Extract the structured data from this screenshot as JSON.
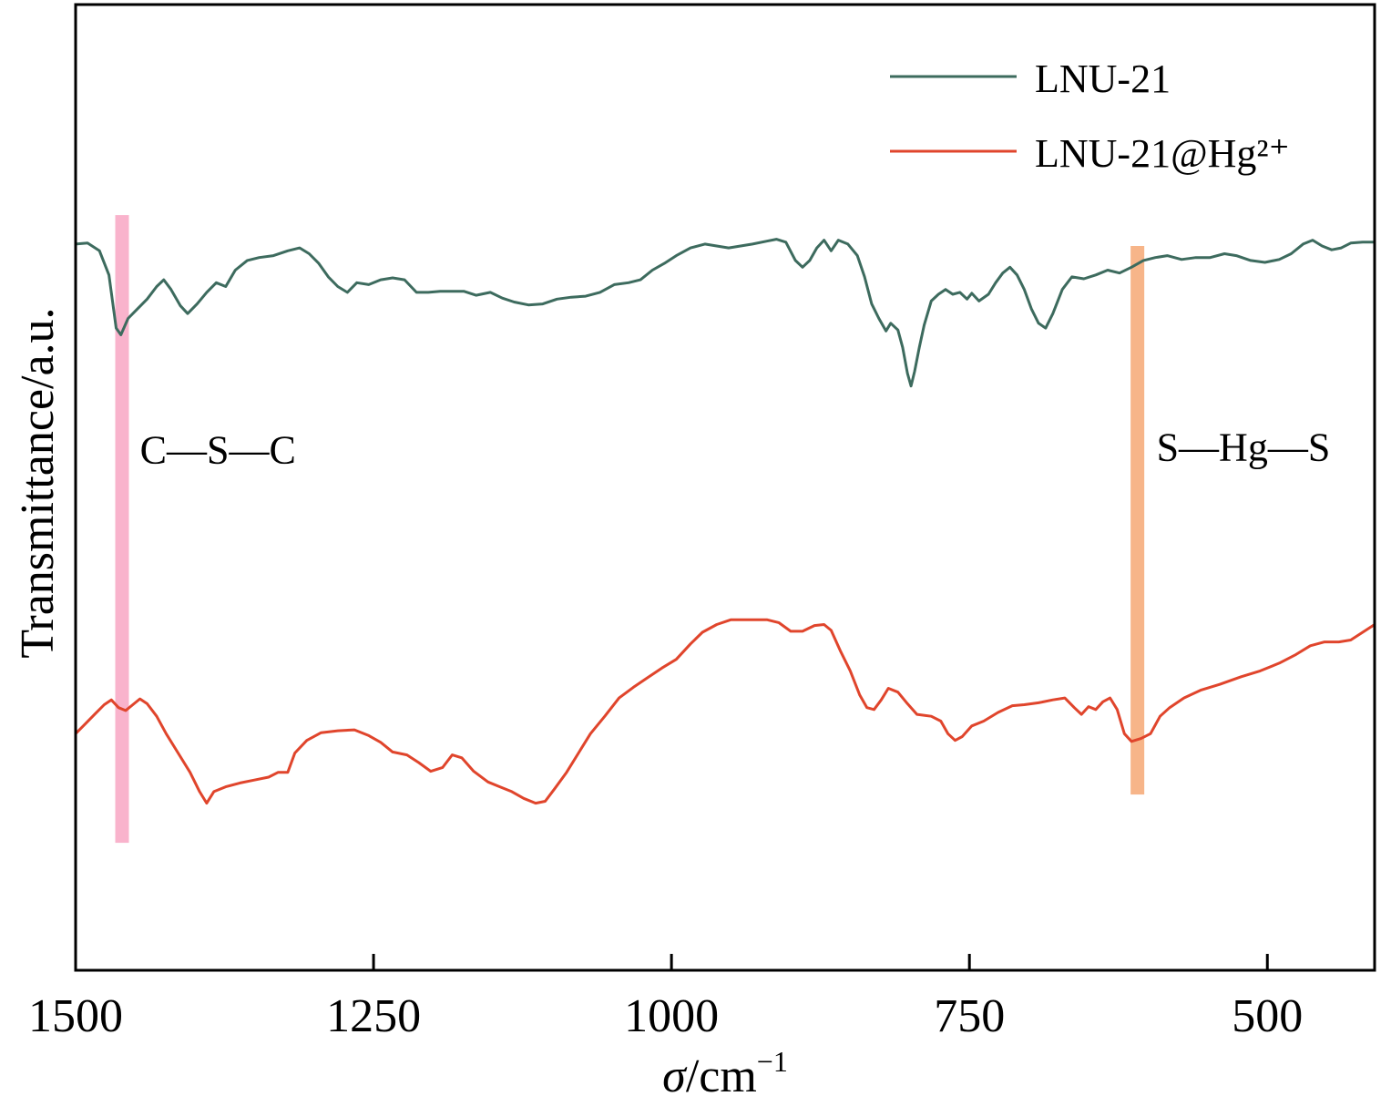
{
  "chart_data": {
    "type": "line",
    "xlabel": {
      "symbol": "σ",
      "unit": "/cm",
      "exp": "−1"
    },
    "ylabel": "Transmittance/a.u.",
    "xlim": [
      1500,
      410
    ],
    "ylim": [
      0,
      100
    ],
    "x_reversed": true,
    "xticks": [
      1500,
      1250,
      1000,
      750,
      500
    ],
    "yticks_shown": false,
    "grid": false,
    "legend_position": "top-right",
    "series": [
      {
        "name": "LNU-21",
        "color": "#3d6b5e",
        "points": [
          [
            1500,
            75.2
          ],
          [
            1490,
            75.3
          ],
          [
            1480,
            74.5
          ],
          [
            1472,
            72.0
          ],
          [
            1466,
            66.5
          ],
          [
            1462,
            65.8
          ],
          [
            1456,
            67.5
          ],
          [
            1448,
            68.5
          ],
          [
            1440,
            69.5
          ],
          [
            1432,
            70.8
          ],
          [
            1426,
            71.5
          ],
          [
            1420,
            70.5
          ],
          [
            1412,
            68.8
          ],
          [
            1406,
            68.0
          ],
          [
            1398,
            69.0
          ],
          [
            1390,
            70.2
          ],
          [
            1382,
            71.2
          ],
          [
            1374,
            70.8
          ],
          [
            1366,
            72.5
          ],
          [
            1356,
            73.5
          ],
          [
            1346,
            73.8
          ],
          [
            1334,
            74.0
          ],
          [
            1322,
            74.5
          ],
          [
            1312,
            74.8
          ],
          [
            1304,
            74.2
          ],
          [
            1296,
            73.2
          ],
          [
            1288,
            71.8
          ],
          [
            1280,
            70.8
          ],
          [
            1272,
            70.2
          ],
          [
            1264,
            71.2
          ],
          [
            1254,
            71.0
          ],
          [
            1244,
            71.5
          ],
          [
            1234,
            71.7
          ],
          [
            1224,
            71.5
          ],
          [
            1214,
            70.2
          ],
          [
            1204,
            70.2
          ],
          [
            1194,
            70.3
          ],
          [
            1184,
            70.3
          ],
          [
            1174,
            70.3
          ],
          [
            1164,
            69.9
          ],
          [
            1152,
            70.2
          ],
          [
            1142,
            69.6
          ],
          [
            1132,
            69.2
          ],
          [
            1120,
            68.9
          ],
          [
            1108,
            69.0
          ],
          [
            1096,
            69.5
          ],
          [
            1084,
            69.7
          ],
          [
            1072,
            69.8
          ],
          [
            1060,
            70.2
          ],
          [
            1048,
            71.0
          ],
          [
            1036,
            71.2
          ],
          [
            1026,
            71.5
          ],
          [
            1016,
            72.5
          ],
          [
            1006,
            73.2
          ],
          [
            996,
            74.0
          ],
          [
            984,
            74.8
          ],
          [
            972,
            75.2
          ],
          [
            962,
            75.0
          ],
          [
            952,
            74.8
          ],
          [
            942,
            75.0
          ],
          [
            932,
            75.2
          ],
          [
            920,
            75.5
          ],
          [
            912,
            75.7
          ],
          [
            904,
            75.4
          ],
          [
            896,
            73.5
          ],
          [
            890,
            72.8
          ],
          [
            884,
            73.5
          ],
          [
            878,
            74.8
          ],
          [
            872,
            75.6
          ],
          [
            866,
            74.5
          ],
          [
            860,
            75.6
          ],
          [
            852,
            75.2
          ],
          [
            844,
            74.0
          ],
          [
            838,
            71.8
          ],
          [
            832,
            69.0
          ],
          [
            826,
            67.5
          ],
          [
            820,
            66.2
          ],
          [
            816,
            67.0
          ],
          [
            810,
            66.3
          ],
          [
            806,
            64.5
          ],
          [
            802,
            61.8
          ],
          [
            799,
            60.5
          ],
          [
            796,
            62.0
          ],
          [
            792,
            64.5
          ],
          [
            788,
            66.8
          ],
          [
            782,
            69.3
          ],
          [
            776,
            70.0
          ],
          [
            770,
            70.5
          ],
          [
            764,
            70.0
          ],
          [
            758,
            70.2
          ],
          [
            752,
            69.5
          ],
          [
            748,
            70.1
          ],
          [
            742,
            69.3
          ],
          [
            734,
            70.0
          ],
          [
            728,
            71.2
          ],
          [
            722,
            72.2
          ],
          [
            716,
            72.8
          ],
          [
            710,
            72.0
          ],
          [
            704,
            70.5
          ],
          [
            698,
            68.5
          ],
          [
            692,
            67.0
          ],
          [
            686,
            66.5
          ],
          [
            680,
            68.0
          ],
          [
            672,
            70.5
          ],
          [
            664,
            71.8
          ],
          [
            654,
            71.6
          ],
          [
            644,
            72.0
          ],
          [
            634,
            72.5
          ],
          [
            624,
            72.2
          ],
          [
            614,
            72.8
          ],
          [
            604,
            73.5
          ],
          [
            594,
            73.8
          ],
          [
            584,
            74.0
          ],
          [
            572,
            73.6
          ],
          [
            560,
            73.8
          ],
          [
            548,
            73.8
          ],
          [
            536,
            74.2
          ],
          [
            526,
            74.0
          ],
          [
            514,
            73.5
          ],
          [
            502,
            73.3
          ],
          [
            490,
            73.6
          ],
          [
            480,
            74.2
          ],
          [
            470,
            75.2
          ],
          [
            462,
            75.6
          ],
          [
            454,
            75.0
          ],
          [
            446,
            74.6
          ],
          [
            438,
            74.8
          ],
          [
            430,
            75.3
          ],
          [
            420,
            75.4
          ],
          [
            410,
            75.4
          ]
        ]
      },
      {
        "name": "LNU-21@Hg²⁺",
        "color": "#e0452c",
        "points": [
          [
            1500,
            24.5
          ],
          [
            1492,
            25.5
          ],
          [
            1484,
            26.5
          ],
          [
            1476,
            27.5
          ],
          [
            1470,
            28.0
          ],
          [
            1464,
            27.2
          ],
          [
            1458,
            26.9
          ],
          [
            1452,
            27.5
          ],
          [
            1446,
            28.1
          ],
          [
            1440,
            27.6
          ],
          [
            1432,
            26.3
          ],
          [
            1424,
            24.5
          ],
          [
            1414,
            22.5
          ],
          [
            1404,
            20.5
          ],
          [
            1396,
            18.5
          ],
          [
            1390,
            17.3
          ],
          [
            1384,
            18.5
          ],
          [
            1374,
            19.0
          ],
          [
            1362,
            19.4
          ],
          [
            1350,
            19.7
          ],
          [
            1338,
            20.0
          ],
          [
            1330,
            20.5
          ],
          [
            1322,
            20.5
          ],
          [
            1316,
            22.5
          ],
          [
            1306,
            23.8
          ],
          [
            1294,
            24.6
          ],
          [
            1280,
            24.8
          ],
          [
            1266,
            24.9
          ],
          [
            1254,
            24.3
          ],
          [
            1244,
            23.6
          ],
          [
            1234,
            22.6
          ],
          [
            1222,
            22.3
          ],
          [
            1212,
            21.5
          ],
          [
            1202,
            20.6
          ],
          [
            1192,
            21.0
          ],
          [
            1184,
            22.3
          ],
          [
            1176,
            22.0
          ],
          [
            1166,
            20.6
          ],
          [
            1154,
            19.5
          ],
          [
            1144,
            19.0
          ],
          [
            1134,
            18.5
          ],
          [
            1124,
            17.8
          ],
          [
            1114,
            17.3
          ],
          [
            1106,
            17.5
          ],
          [
            1098,
            18.8
          ],
          [
            1088,
            20.5
          ],
          [
            1078,
            22.5
          ],
          [
            1068,
            24.5
          ],
          [
            1056,
            26.3
          ],
          [
            1044,
            28.2
          ],
          [
            1032,
            29.3
          ],
          [
            1020,
            30.3
          ],
          [
            1008,
            31.3
          ],
          [
            996,
            32.2
          ],
          [
            984,
            33.8
          ],
          [
            974,
            35.0
          ],
          [
            962,
            35.8
          ],
          [
            950,
            36.3
          ],
          [
            940,
            36.3
          ],
          [
            930,
            36.3
          ],
          [
            920,
            36.3
          ],
          [
            910,
            36.0
          ],
          [
            900,
            35.1
          ],
          [
            890,
            35.1
          ],
          [
            880,
            35.7
          ],
          [
            872,
            35.8
          ],
          [
            866,
            35.2
          ],
          [
            858,
            33.0
          ],
          [
            850,
            31.0
          ],
          [
            842,
            28.5
          ],
          [
            836,
            27.2
          ],
          [
            830,
            27.0
          ],
          [
            824,
            28.0
          ],
          [
            818,
            29.2
          ],
          [
            810,
            28.8
          ],
          [
            802,
            27.6
          ],
          [
            794,
            26.5
          ],
          [
            782,
            26.3
          ],
          [
            774,
            25.8
          ],
          [
            768,
            24.5
          ],
          [
            762,
            23.8
          ],
          [
            756,
            24.2
          ],
          [
            748,
            25.3
          ],
          [
            738,
            25.8
          ],
          [
            726,
            26.7
          ],
          [
            714,
            27.4
          ],
          [
            704,
            27.5
          ],
          [
            692,
            27.7
          ],
          [
            680,
            28.0
          ],
          [
            670,
            28.2
          ],
          [
            662,
            27.2
          ],
          [
            656,
            26.5
          ],
          [
            650,
            27.3
          ],
          [
            644,
            27.0
          ],
          [
            638,
            27.8
          ],
          [
            632,
            28.2
          ],
          [
            626,
            27.0
          ],
          [
            620,
            24.5
          ],
          [
            614,
            23.7
          ],
          [
            606,
            24.0
          ],
          [
            598,
            24.5
          ],
          [
            590,
            26.3
          ],
          [
            582,
            27.2
          ],
          [
            570,
            28.2
          ],
          [
            556,
            29.0
          ],
          [
            540,
            29.6
          ],
          [
            522,
            30.4
          ],
          [
            506,
            31.0
          ],
          [
            490,
            31.8
          ],
          [
            476,
            32.7
          ],
          [
            464,
            33.6
          ],
          [
            452,
            34.0
          ],
          [
            440,
            34.0
          ],
          [
            430,
            34.2
          ],
          [
            420,
            35.0
          ],
          [
            410,
            35.8
          ]
        ]
      }
    ],
    "bands": [
      {
        "x": 1461,
        "y_range": [
          13.2,
          78.2
        ],
        "color": "#f9b3cc"
      },
      {
        "x": 609,
        "y_range": [
          18.2,
          75.0
        ],
        "color": "#f7b589"
      }
    ],
    "annotations": [
      {
        "text": "C—S—C",
        "x": 1446,
        "y": 52.5
      },
      {
        "text": "S—Hg—S",
        "x": 593,
        "y": 52.8
      }
    ]
  }
}
